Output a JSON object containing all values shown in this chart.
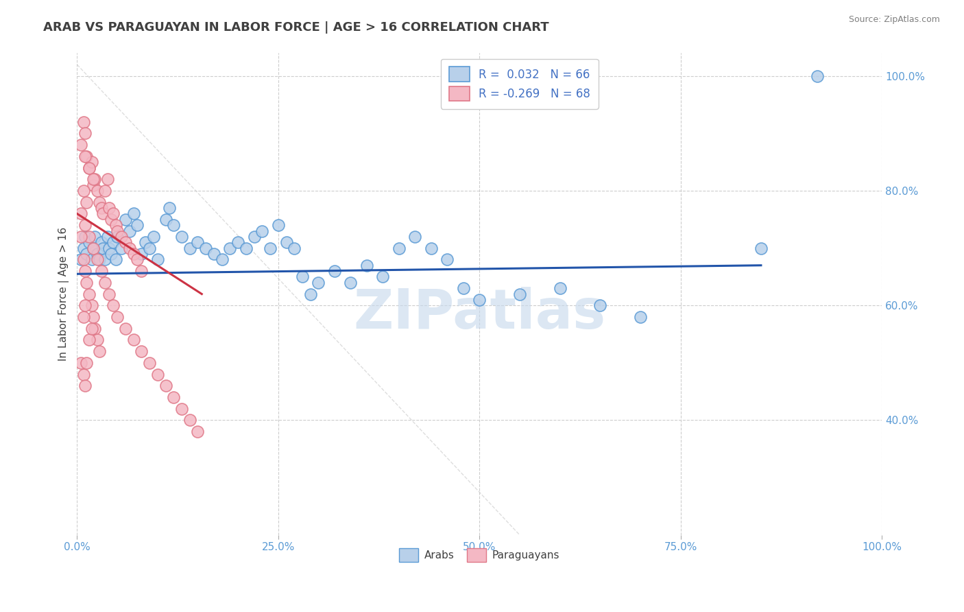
{
  "title": "ARAB VS PARAGUAYAN IN LABOR FORCE | AGE > 16 CORRELATION CHART",
  "source_text": "Source: ZipAtlas.com",
  "ylabel": "In Labor Force | Age > 16",
  "xlim": [
    0.0,
    1.0
  ],
  "ylim": [
    0.2,
    1.04
  ],
  "xticks": [
    0.0,
    0.25,
    0.5,
    0.75,
    1.0
  ],
  "xticklabels": [
    "0.0%",
    "25.0%",
    "50.0%",
    "75.0%",
    "100.0%"
  ],
  "yticks": [
    0.4,
    0.6,
    0.8,
    1.0
  ],
  "yticklabels": [
    "40.0%",
    "60.0%",
    "80.0%",
    "100.0%"
  ],
  "arab_color": "#b8d0ea",
  "arab_edge_color": "#5b9bd5",
  "paraguayan_color": "#f4b8c4",
  "paraguayan_edge_color": "#e07888",
  "arab_R": 0.032,
  "arab_N": 66,
  "paraguayan_R": -0.269,
  "paraguayan_N": 68,
  "trend_arab_color": "#2255aa",
  "trend_paraguayan_color": "#cc3344",
  "diagonal_color": "#d0d0d0",
  "watermark": "ZIPatlas",
  "watermark_color": "#c5d8ec",
  "background_color": "#ffffff",
  "grid_color": "#c8c8c8",
  "title_color": "#404040",
  "tick_color": "#5b9bd5",
  "source_color": "#808080",
  "legend_text_color": "#4472c4",
  "arab_scatter_x": [
    0.005,
    0.008,
    0.01,
    0.012,
    0.015,
    0.018,
    0.02,
    0.022,
    0.025,
    0.028,
    0.03,
    0.032,
    0.035,
    0.038,
    0.04,
    0.042,
    0.045,
    0.048,
    0.05,
    0.055,
    0.06,
    0.065,
    0.07,
    0.075,
    0.08,
    0.085,
    0.09,
    0.095,
    0.1,
    0.11,
    0.115,
    0.12,
    0.13,
    0.14,
    0.15,
    0.16,
    0.17,
    0.18,
    0.19,
    0.2,
    0.21,
    0.22,
    0.23,
    0.24,
    0.25,
    0.26,
    0.27,
    0.28,
    0.29,
    0.3,
    0.32,
    0.34,
    0.36,
    0.38,
    0.4,
    0.42,
    0.44,
    0.46,
    0.48,
    0.5,
    0.55,
    0.6,
    0.65,
    0.7,
    0.85,
    0.92
  ],
  "arab_scatter_y": [
    0.68,
    0.7,
    0.72,
    0.69,
    0.71,
    0.68,
    0.7,
    0.72,
    0.69,
    0.68,
    0.71,
    0.7,
    0.68,
    0.72,
    0.7,
    0.69,
    0.71,
    0.68,
    0.72,
    0.7,
    0.75,
    0.73,
    0.76,
    0.74,
    0.69,
    0.71,
    0.7,
    0.72,
    0.68,
    0.75,
    0.77,
    0.74,
    0.72,
    0.7,
    0.71,
    0.7,
    0.69,
    0.68,
    0.7,
    0.71,
    0.7,
    0.72,
    0.73,
    0.7,
    0.74,
    0.71,
    0.7,
    0.65,
    0.62,
    0.64,
    0.66,
    0.64,
    0.67,
    0.65,
    0.7,
    0.72,
    0.7,
    0.68,
    0.63,
    0.61,
    0.62,
    0.63,
    0.6,
    0.58,
    0.7,
    1.0
  ],
  "paraguayan_scatter_x": [
    0.005,
    0.008,
    0.01,
    0.012,
    0.015,
    0.018,
    0.02,
    0.022,
    0.025,
    0.028,
    0.03,
    0.032,
    0.035,
    0.038,
    0.04,
    0.042,
    0.045,
    0.048,
    0.05,
    0.055,
    0.06,
    0.065,
    0.07,
    0.075,
    0.08,
    0.01,
    0.015,
    0.02,
    0.008,
    0.012,
    0.005,
    0.01,
    0.015,
    0.02,
    0.025,
    0.03,
    0.035,
    0.04,
    0.045,
    0.05,
    0.06,
    0.07,
    0.08,
    0.09,
    0.1,
    0.11,
    0.12,
    0.13,
    0.14,
    0.15,
    0.005,
    0.008,
    0.01,
    0.012,
    0.015,
    0.018,
    0.02,
    0.022,
    0.025,
    0.028,
    0.005,
    0.008,
    0.01,
    0.012,
    0.015,
    0.018,
    0.008,
    0.01
  ],
  "paraguayan_scatter_y": [
    0.88,
    0.92,
    0.9,
    0.86,
    0.84,
    0.85,
    0.81,
    0.82,
    0.8,
    0.78,
    0.77,
    0.76,
    0.8,
    0.82,
    0.77,
    0.75,
    0.76,
    0.74,
    0.73,
    0.72,
    0.71,
    0.7,
    0.69,
    0.68,
    0.66,
    0.86,
    0.84,
    0.82,
    0.8,
    0.78,
    0.76,
    0.74,
    0.72,
    0.7,
    0.68,
    0.66,
    0.64,
    0.62,
    0.6,
    0.58,
    0.56,
    0.54,
    0.52,
    0.5,
    0.48,
    0.46,
    0.44,
    0.42,
    0.4,
    0.38,
    0.72,
    0.68,
    0.66,
    0.64,
    0.62,
    0.6,
    0.58,
    0.56,
    0.54,
    0.52,
    0.5,
    0.48,
    0.46,
    0.5,
    0.54,
    0.56,
    0.58,
    0.6
  ]
}
